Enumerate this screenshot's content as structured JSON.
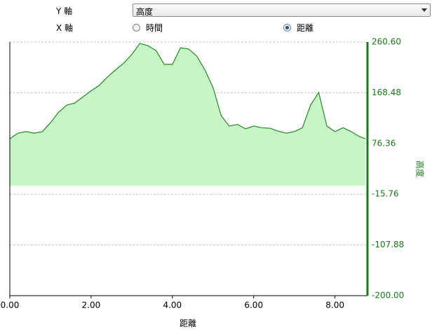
{
  "controls": {
    "y_axis_label": "Y 軸",
    "y_axis_value": "高度",
    "x_axis_label": "X 軸",
    "x_axis_options": [
      {
        "label": "時間",
        "checked": false
      },
      {
        "label": "距離",
        "checked": true
      }
    ]
  },
  "chart_data": {
    "type": "area",
    "x_label": "距離",
    "y_label": "高度",
    "x": [
      0,
      0.2,
      0.4,
      0.6,
      0.8,
      1.0,
      1.2,
      1.4,
      1.6,
      1.8,
      2.0,
      2.2,
      2.4,
      2.6,
      2.8,
      3.0,
      3.2,
      3.4,
      3.6,
      3.8,
      4.0,
      4.2,
      4.4,
      4.6,
      4.8,
      5.0,
      5.2,
      5.4,
      5.6,
      5.8,
      6.0,
      6.2,
      6.4,
      6.6,
      6.8,
      7.0,
      7.2,
      7.4,
      7.6,
      7.8,
      8.0,
      8.2,
      8.4,
      8.6,
      8.75
    ],
    "values": [
      85,
      95,
      98,
      95,
      98,
      114,
      133,
      146,
      150,
      161,
      172,
      182,
      197,
      210,
      222,
      238,
      258,
      254,
      245,
      220,
      220,
      250,
      248,
      235,
      210,
      178,
      127,
      108,
      111,
      103,
      108,
      105,
      104,
      99,
      95,
      98,
      105,
      146,
      169,
      108,
      98,
      105,
      98,
      89,
      85
    ],
    "color": "#228b22",
    "fill": "#c8f5c8",
    "xlim": [
      0,
      8.8
    ],
    "xticks": [
      {
        "value": 0,
        "label": "0.00"
      },
      {
        "value": 2,
        "label": "2.00"
      },
      {
        "value": 4,
        "label": "4.00"
      },
      {
        "value": 6,
        "label": "6.00"
      },
      {
        "value": 8,
        "label": "8.00"
      }
    ],
    "ylim": [
      -200,
      260.6
    ],
    "yticks": [
      {
        "value": -200,
        "label": "-200.00"
      },
      -107.88,
      -15.76,
      76.36,
      168.48,
      {
        "value": 260.6,
        "label": "260.60"
      }
    ],
    "y_axis_side": "right",
    "axis_color": "#1a7a1a",
    "grid": true
  }
}
